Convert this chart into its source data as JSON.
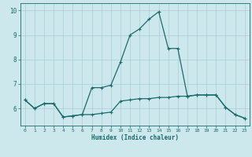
{
  "xlabel": "Humidex (Indice chaleur)",
  "bg_color": "#cce8ec",
  "line_color": "#1a6b6b",
  "grid_color": "#aacdd4",
  "xlim": [
    -0.5,
    23.5
  ],
  "ylim": [
    5.3,
    10.3
  ],
  "yticks": [
    6,
    7,
    8,
    9,
    10
  ],
  "xticks": [
    0,
    1,
    2,
    3,
    4,
    5,
    6,
    7,
    8,
    9,
    10,
    11,
    12,
    13,
    14,
    15,
    16,
    17,
    18,
    19,
    20,
    21,
    22,
    23
  ],
  "line1_x": [
    0,
    1,
    2,
    3,
    4,
    5,
    6,
    7,
    8,
    9,
    10,
    11,
    12,
    13,
    14,
    15,
    16,
    17,
    18,
    19,
    20,
    21,
    22,
    23
  ],
  "line1_y": [
    6.35,
    6.0,
    6.2,
    6.2,
    5.65,
    5.7,
    5.75,
    5.75,
    5.8,
    5.85,
    6.3,
    6.35,
    6.4,
    6.4,
    6.45,
    6.45,
    6.5,
    6.5,
    6.55,
    6.55,
    6.55,
    6.05,
    5.75,
    5.6
  ],
  "line2_x": [
    0,
    1,
    2,
    3,
    4,
    5,
    6,
    7,
    8,
    9,
    10,
    11,
    12,
    13,
    14,
    15,
    16,
    17,
    18,
    19,
    20,
    21,
    22,
    23
  ],
  "line2_y": [
    6.35,
    6.0,
    6.2,
    6.2,
    5.65,
    5.7,
    5.75,
    6.85,
    6.85,
    6.95,
    7.9,
    9.0,
    9.25,
    9.65,
    9.95,
    8.45,
    8.45,
    6.5,
    6.55,
    6.55,
    6.55,
    6.05,
    5.75,
    5.6
  ],
  "markersize": 2.0,
  "linewidth": 0.9
}
